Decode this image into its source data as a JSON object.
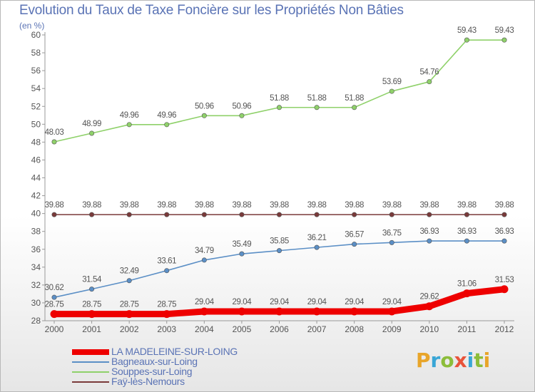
{
  "header": {
    "title": "Evolution du Taux de Taxe Foncière sur les Propriétés Non Bâties",
    "unit": "(en %)"
  },
  "brand": {
    "letters": [
      "P",
      "r",
      "o",
      "x",
      "i",
      "t",
      "i"
    ],
    "colors": [
      "#e8a52a",
      "#39a6d6",
      "#8cbd3a",
      "#e8533a",
      "#39a6d6",
      "#8cbd3a",
      "#e8a52a"
    ]
  },
  "chart_data": {
    "type": "line",
    "x": [
      "2000",
      "2001",
      "2002",
      "2003",
      "2004",
      "2005",
      "2006",
      "2007",
      "2008",
      "2009",
      "2010",
      "2011",
      "2012"
    ],
    "ylim": [
      28,
      60
    ],
    "yticks": [
      28,
      30,
      32,
      34,
      36,
      38,
      40,
      42,
      44,
      46,
      48,
      50,
      52,
      54,
      56,
      58,
      60
    ],
    "grid": false,
    "legend_position": "bottom-left",
    "series": [
      {
        "name": "LA MADELEINE-SUR-LOING",
        "color": "#ee0000",
        "values": [
          28.75,
          28.75,
          28.75,
          28.75,
          29.04,
          29.04,
          29.04,
          29.04,
          29.04,
          29.04,
          29.62,
          31.06,
          31.53
        ],
        "labels": [
          "28.75",
          "28.75",
          "28.75",
          "28.75",
          "29.04",
          "29.04",
          "29.04",
          "29.04",
          "29.04",
          "29.04",
          "29.62",
          "31.06",
          "31.53"
        ]
      },
      {
        "name": "Bagneaux-sur-Loing",
        "color": "#5b8fc6",
        "values": [
          30.62,
          31.54,
          32.49,
          33.61,
          34.79,
          35.49,
          35.85,
          36.21,
          36.57,
          36.75,
          36.93,
          36.93,
          36.93
        ],
        "labels": [
          "30.62",
          "31.54",
          "32.49",
          "33.61",
          "34.79",
          "35.49",
          "35.85",
          "36.21",
          "36.57",
          "36.75",
          "36.93",
          "36.93",
          "36.93"
        ]
      },
      {
        "name": "Souppes-sur-Loing",
        "color": "#8fd16a",
        "values": [
          48.03,
          48.99,
          49.96,
          49.96,
          50.96,
          50.96,
          51.88,
          51.88,
          51.88,
          53.69,
          54.76,
          59.43,
          59.43
        ],
        "labels": [
          "48.03",
          "48.99",
          "49.96",
          "49.96",
          "50.96",
          "50.96",
          "51.88",
          "51.88",
          "51.88",
          "53.69",
          "54.76",
          "59.43",
          "59.43"
        ]
      },
      {
        "name": "Faÿ-lès-Nemours",
        "color": "#7a3a3a",
        "values": [
          39.88,
          39.88,
          39.88,
          39.88,
          39.88,
          39.88,
          39.88,
          39.88,
          39.88,
          39.88,
          39.88,
          39.88,
          39.88
        ],
        "labels": [
          "39.88",
          "39.88",
          "39.88",
          "39.88",
          "39.88",
          "39.88",
          "39.88",
          "39.88",
          "39.88",
          "39.88",
          "39.88",
          "39.88",
          "39.88"
        ]
      }
    ]
  }
}
